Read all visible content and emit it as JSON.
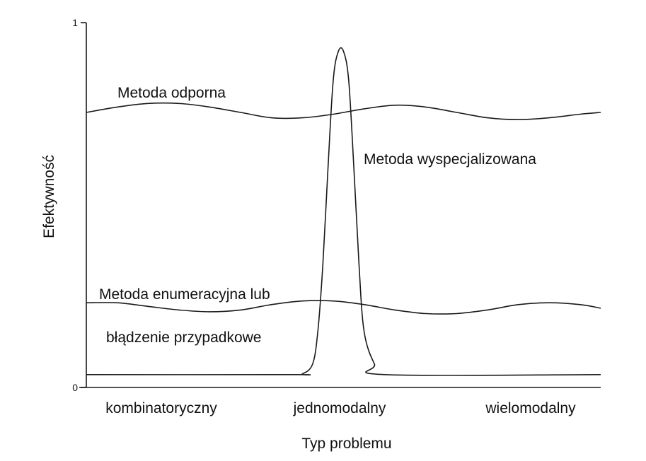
{
  "chart_data": {
    "type": "line",
    "title": "",
    "xlabel": "Typ problemu",
    "ylabel": "Efektywność",
    "categories": [
      "kombinatoryczny",
      "jednomodalny",
      "wielomodalny"
    ],
    "x_range": [
      0,
      1
    ],
    "ylim": [
      0,
      1
    ],
    "y_ticks": [
      "0",
      "1"
    ],
    "grid": false,
    "series": [
      {
        "name": "Metoda odporna",
        "label_lines": [
          "Metoda odporna"
        ],
        "x": [
          0.0,
          0.06,
          0.12,
          0.18,
          0.24,
          0.3,
          0.36,
          0.42,
          0.48,
          0.54,
          0.6,
          0.66,
          0.72,
          0.78,
          0.84,
          0.9,
          0.96,
          1.0
        ],
        "y": [
          0.75,
          0.765,
          0.775,
          0.775,
          0.765,
          0.75,
          0.735,
          0.735,
          0.745,
          0.76,
          0.77,
          0.765,
          0.75,
          0.735,
          0.73,
          0.735,
          0.745,
          0.75
        ]
      },
      {
        "name": "Metoda wyspecjalizowana",
        "label_lines": [
          "Metoda wyspecjalizowana"
        ],
        "x": [
          0.0,
          0.4,
          0.42,
          0.44,
          0.45,
          0.46,
          0.47,
          0.48,
          0.49,
          0.5,
          0.51,
          0.52,
          0.53,
          0.54,
          0.56,
          0.58,
          1.0
        ],
        "y": [
          0.02,
          0.02,
          0.022,
          0.05,
          0.14,
          0.33,
          0.6,
          0.84,
          0.92,
          0.92,
          0.84,
          0.6,
          0.33,
          0.14,
          0.05,
          0.02,
          0.02
        ]
      },
      {
        "name": "Metoda enumeracyjna lub błądzenie przypadkowe",
        "label_lines": [
          "Metoda enumeracyjna lub",
          "błądzenie przypadkowe"
        ],
        "x": [
          0.0,
          0.06,
          0.12,
          0.18,
          0.24,
          0.3,
          0.36,
          0.42,
          0.48,
          0.54,
          0.6,
          0.66,
          0.72,
          0.78,
          0.84,
          0.9,
          0.96,
          1.0
        ],
        "y": [
          0.22,
          0.22,
          0.21,
          0.2,
          0.195,
          0.2,
          0.215,
          0.225,
          0.225,
          0.215,
          0.2,
          0.19,
          0.19,
          0.2,
          0.215,
          0.22,
          0.215,
          0.205
        ]
      }
    ]
  }
}
